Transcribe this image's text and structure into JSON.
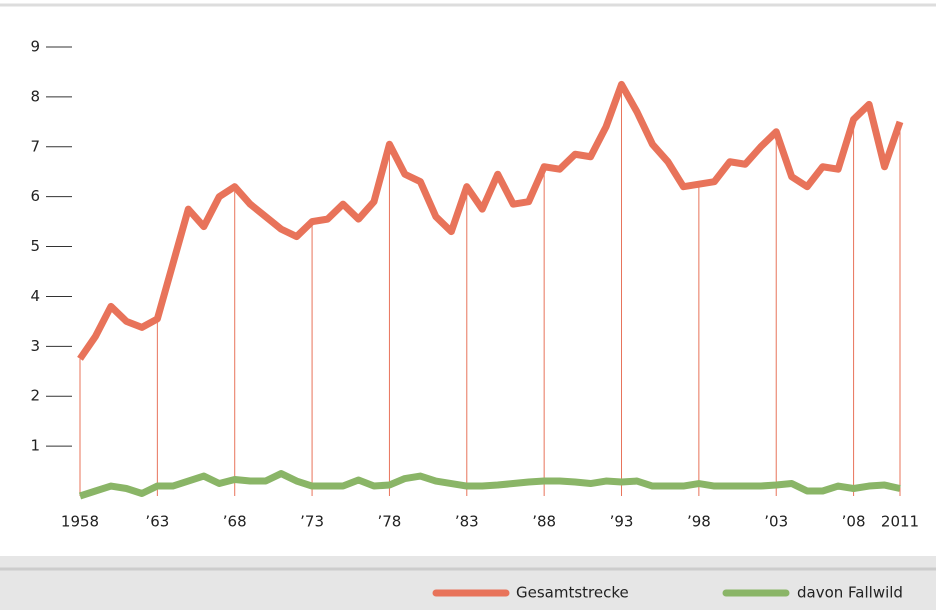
{
  "chart_data": {
    "type": "line",
    "x": [
      1958,
      1959,
      1960,
      1961,
      1962,
      1963,
      1964,
      1965,
      1966,
      1967,
      1968,
      1969,
      1970,
      1971,
      1972,
      1973,
      1974,
      1975,
      1976,
      1977,
      1978,
      1979,
      1980,
      1981,
      1982,
      1983,
      1984,
      1985,
      1986,
      1987,
      1988,
      1989,
      1990,
      1991,
      1992,
      1993,
      1994,
      1995,
      1996,
      1997,
      1998,
      1999,
      2000,
      2001,
      2002,
      2003,
      2004,
      2005,
      2006,
      2007,
      2008,
      2009,
      2010,
      2011
    ],
    "series": [
      {
        "name": "Gesamtstrecke",
        "color": "#e8735a",
        "values": [
          2.75,
          3.2,
          3.8,
          3.5,
          3.38,
          3.55,
          4.65,
          5.75,
          5.4,
          6.0,
          6.2,
          5.85,
          5.6,
          5.35,
          5.2,
          5.5,
          5.55,
          5.85,
          5.55,
          5.9,
          7.05,
          6.45,
          6.3,
          5.6,
          5.3,
          6.2,
          5.75,
          6.45,
          5.85,
          5.9,
          6.6,
          6.55,
          6.85,
          6.8,
          7.4,
          8.25,
          7.7,
          7.05,
          6.7,
          6.2,
          6.25,
          6.3,
          6.7,
          6.65,
          7.0,
          7.3,
          6.4,
          6.2,
          6.6,
          6.55,
          7.55,
          7.85,
          6.6,
          7.5
        ]
      },
      {
        "name": "davon Fallwild",
        "color": "#8ab567",
        "values": [
          0,
          0.1,
          0.2,
          0.15,
          0.05,
          0.2,
          0.2,
          0.3,
          0.4,
          0.25,
          0.33,
          0.3,
          0.3,
          0.45,
          0.3,
          0.2,
          0.2,
          0.2,
          0.32,
          0.2,
          0.22,
          0.35,
          0.4,
          0.3,
          0.25,
          0.2,
          0.2,
          0.22,
          0.25,
          0.28,
          0.3,
          0.3,
          0.28,
          0.25,
          0.3,
          0.28,
          0.3,
          0.2,
          0.2,
          0.2,
          0.25,
          0.2,
          0.2,
          0.2,
          0.2,
          0.22,
          0.25,
          0.1,
          0.1,
          0.2,
          0.15,
          0.2,
          0.22,
          0.15
        ]
      }
    ],
    "xlim": [
      1958,
      2011
    ],
    "xticks": [
      1958,
      {
        "value": 1963,
        "label": "’63"
      },
      {
        "value": 1968,
        "label": "’68"
      },
      {
        "value": 1973,
        "label": "’73"
      },
      {
        "value": 1978,
        "label": "’78"
      },
      {
        "value": 1983,
        "label": "’83"
      },
      {
        "value": 1988,
        "label": "’88"
      },
      {
        "value": 1993,
        "label": "’93"
      },
      {
        "value": 1998,
        "label": "’98"
      },
      {
        "value": 2003,
        "label": "’03"
      },
      {
        "value": 2008,
        "label": "’08"
      },
      2011
    ],
    "ylim": [
      0,
      9
    ],
    "yticks": [
      1,
      2,
      3,
      4,
      5,
      6,
      7,
      8,
      9
    ]
  }
}
